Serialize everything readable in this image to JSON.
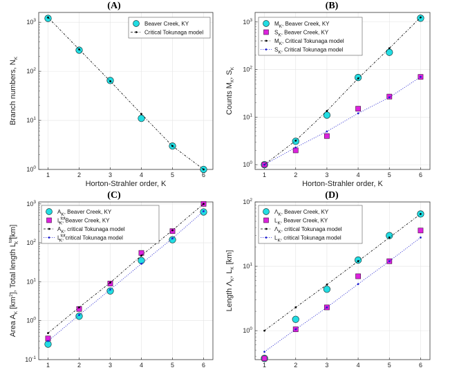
{
  "chart_data": [
    {
      "type": "scatter",
      "panel": "(A)",
      "xlabel": "Horton-Strahler order, K",
      "ylabel": "Branch numbers, N",
      "ylabel_sub": "K",
      "yscale": "log",
      "xlim": [
        0.7,
        6.3
      ],
      "ylim_exp": [
        0,
        3.2
      ],
      "x": [
        1,
        2,
        3,
        4,
        5,
        6
      ],
      "xticks": [
        "1",
        "2",
        "3",
        "4",
        "5",
        "6"
      ],
      "ytick_exp": [
        0,
        1,
        2,
        3
      ],
      "series": [
        {
          "name": "Beaver Creek, KY",
          "marker": "circle",
          "color": "#22dde3",
          "values": [
            1200,
            270,
            65,
            11,
            3,
            1
          ]
        },
        {
          "name": "Critical Tokunaga model",
          "marker": "dot",
          "line": "dashdot",
          "color": "#000000",
          "values": [
            1250,
            280,
            63,
            13.5,
            3,
            1
          ]
        }
      ],
      "legend": [
        "Beaver Creek, KY",
        "Critical Tokunaga model"
      ],
      "legend_position": "top-right"
    },
    {
      "type": "scatter",
      "panel": "(B)",
      "xlabel": "Horton-Strahler order, K",
      "ylabel": "Counts M",
      "ylabel_sub": "K",
      "ylabel_mid": ", S",
      "ylabel_sub2": "K",
      "yscale": "log",
      "xlim": [
        0.7,
        6.3
      ],
      "ylim_exp": [
        -0.1,
        3.2
      ],
      "x": [
        1,
        2,
        3,
        4,
        5,
        6
      ],
      "xticks": [
        "1",
        "2",
        "3",
        "4",
        "5",
        "6"
      ],
      "ytick_exp": [
        0,
        1,
        2,
        3
      ],
      "series": [
        {
          "name": "M_K, Beaver Creek, KY",
          "marker": "circle",
          "color": "#22dde3",
          "values": [
            1,
            3.1,
            11,
            68,
            230,
            1200
          ]
        },
        {
          "name": "S_K, Beaver Creek, KY",
          "marker": "square",
          "color": "#dd22dd",
          "values": [
            1,
            2,
            4,
            15,
            27,
            70
          ]
        },
        {
          "name": "M_K, Critical Tokunaga model",
          "marker": "dot",
          "line": "dashdot",
          "color": "#000000",
          "values": [
            1,
            3.2,
            13.5,
            65,
            280,
            1250
          ]
        },
        {
          "name": "S_K, Critical Tokunaga model",
          "marker": "dot",
          "line": "dotted",
          "color": "#1f1fd0",
          "values": [
            1,
            2.3,
            5,
            12,
            26,
            70
          ]
        }
      ],
      "legend": [
        "M",
        "S",
        "M",
        "S"
      ],
      "legend_suffix": [
        ", Beaver Creek, KY",
        ", Beaver Creek, KY",
        ", Critical Tokunaga model",
        ", Critical Tokunaga model"
      ],
      "legend_sub": "K",
      "legend_position": "top-left"
    },
    {
      "type": "scatter",
      "panel": "(C)",
      "xlabel": "Horton-Strahler order, K",
      "ylabel": "Area A",
      "ylabel_sub": "K",
      "ylabel_unit1": " [km",
      "ylabel_sup": "2",
      "ylabel_mid": "], Total length L",
      "ylabel_sub2": "K",
      "ylabel_sup2": "tot",
      "ylabel_unit2": " [km]",
      "yscale": "log",
      "xlim": [
        0.7,
        6.3
      ],
      "ylim_exp": [
        -1,
        3.05
      ],
      "x": [
        1,
        2,
        3,
        4,
        5,
        6
      ],
      "xticks": [
        "1",
        "2",
        "3",
        "4",
        "5",
        "6"
      ],
      "ytick_exp": [
        -1,
        0,
        1,
        2,
        3
      ],
      "series": [
        {
          "name": "A_K, Beaver Creek, KY",
          "marker": "circle",
          "color": "#22dde3",
          "values": [
            0.25,
            1.3,
            5.8,
            35,
            120,
            620
          ]
        },
        {
          "name": "L_K^tot, Beaver Creek, KY",
          "marker": "square",
          "color": "#dd22dd",
          "values": [
            0.35,
            2,
            9,
            55,
            200,
            1000
          ]
        },
        {
          "name": "A_K, critical Tokunaga model",
          "marker": "dot",
          "line": "dashdot",
          "color": "#000000",
          "values": [
            0.48,
            2.2,
            9.5,
            47,
            210,
            1000
          ]
        },
        {
          "name": "L_K^tot, critical Tokunaga model",
          "marker": "dot",
          "line": "dotted",
          "color": "#1f1fd0",
          "values": [
            0.3,
            1.4,
            6.3,
            29,
            130,
            650
          ]
        }
      ],
      "legend": [
        "A",
        "L",
        "A",
        "L"
      ],
      "legend_suffix": [
        ", Beaver Creek, KY",
        ", Beaver Creek, KY",
        ", critical Tokunaga model",
        ", critical Tokunaga model"
      ],
      "legend_sub": "K",
      "legend_sup": "tot",
      "legend_position": "top-left"
    },
    {
      "type": "scatter",
      "panel": "(D)",
      "xlabel": "Horton-Strahler order, K",
      "ylabel": "Length Λ",
      "ylabel_sub": "K",
      "ylabel_mid": ", L",
      "ylabel_sub2": "K",
      "ylabel_unit2": " [km]",
      "yscale": "log",
      "xlim": [
        0.7,
        6.3
      ],
      "ylim_exp": [
        -0.45,
        2
      ],
      "x": [
        1,
        2,
        3,
        4,
        5,
        6
      ],
      "xticks": [
        "1",
        "2",
        "3",
        "4",
        "5",
        "6"
      ],
      "ytick_exp": [
        0,
        1,
        2
      ],
      "series": [
        {
          "name": "Λ_K, Beaver Creek, KY",
          "marker": "circle",
          "color": "#22dde3",
          "values": [
            0.37,
            1.5,
            4.4,
            12.5,
            30,
            65
          ]
        },
        {
          "name": "L_K, Beaver Creek, KY",
          "marker": "square",
          "color": "#dd22dd",
          "values": [
            0.37,
            1.05,
            2.3,
            7,
            12,
            36
          ]
        },
        {
          "name": "Λ_K, critical Tokunaga model",
          "marker": "dot",
          "line": "dashdot",
          "color": "#000000",
          "values": [
            1,
            2.3,
            5.2,
            12,
            28,
            65
          ]
        },
        {
          "name": "L_K, critical Tokunaga model",
          "marker": "dot",
          "line": "dotted",
          "color": "#1f1fd0",
          "values": [
            0.47,
            1.05,
            2.3,
            5.3,
            12,
            28
          ]
        }
      ],
      "legend": [
        "Λ",
        "L",
        "Λ",
        "L"
      ],
      "legend_suffix": [
        ", Beaver Creek, KY",
        ", Beaver Creek, KY",
        ", critical Tokunaga model",
        ", critical Tokunaga model"
      ],
      "legend_sub": "K",
      "legend_position": "top-left"
    }
  ]
}
